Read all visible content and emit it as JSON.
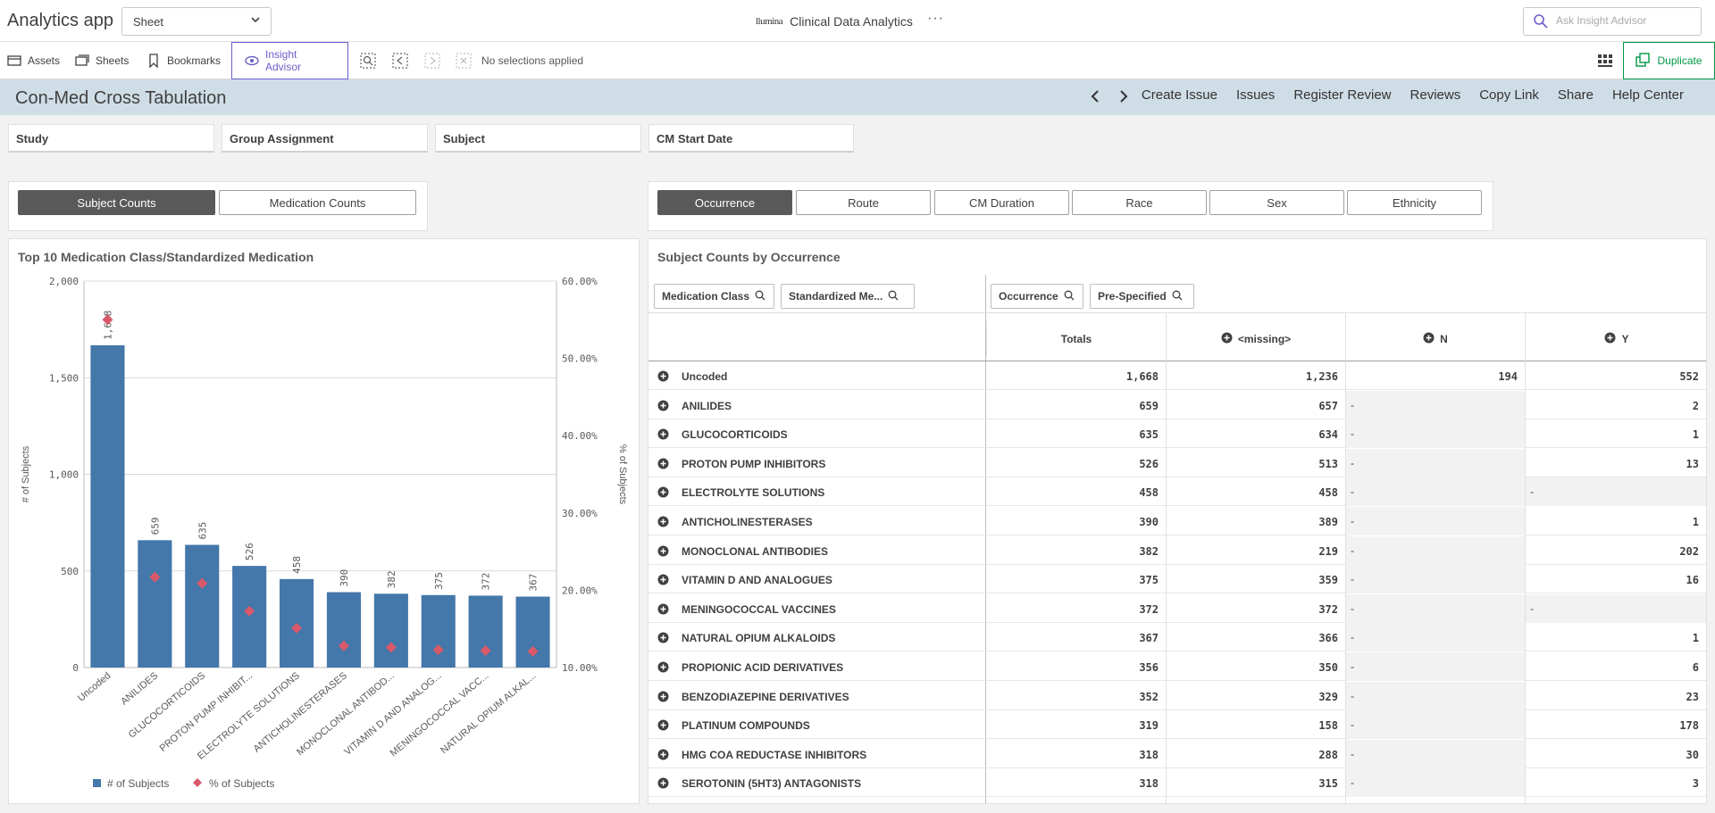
{
  "app": {
    "title": "Analytics app",
    "sheet_select": "Sheet",
    "brand_logo": "llumina",
    "brand_name": "Clinical Data Analytics",
    "more": "···",
    "ask_placeholder": "Ask Insight Advisor"
  },
  "toolbar": {
    "assets": "Assets",
    "sheets": "Sheets",
    "bookmarks": "Bookmarks",
    "insight_advisor": "Insight Advisor",
    "no_selections": "No selections applied",
    "duplicate": "Duplicate"
  },
  "sheet": {
    "title": "Con-Med Cross Tabulation",
    "prev": "‹",
    "next": "›",
    "links": [
      "Create Issue",
      "Issues",
      "Register Review",
      "Reviews",
      "Copy Link",
      "Share",
      "Help Center"
    ]
  },
  "filters": [
    "Study",
    "Group Assignment",
    "Subject",
    "CM Start Date"
  ],
  "left_buttons": [
    "Subject Counts",
    "Medication Counts"
  ],
  "right_buttons": [
    "Occurrence",
    "Route",
    "CM Duration",
    "Race",
    "Sex",
    "Ethnicity"
  ],
  "chart_data": {
    "type": "bar",
    "title": "Top 10 Medication Class/Standardized Medication",
    "categories": [
      "Uncoded",
      "ANILIDES",
      "GLUCOCORTICOIDS",
      "PROTON PUMP INHIBIT...",
      "ELECTROLYTE SOLUTIONS",
      "ANTICHOLINESTERASES",
      "MONOCLONAL ANTIBOD...",
      "VITAMIN D AND ANALOG...",
      "MENINGOCOCCAL VACC...",
      "NATURAL OPIUM ALKAL..."
    ],
    "series": [
      {
        "name": "# of Subjects",
        "values": [
          1668,
          659,
          635,
          526,
          458,
          390,
          382,
          375,
          372,
          367
        ],
        "axis": "left",
        "color": "#4477aa"
      },
      {
        "name": "% of Subjects",
        "values": [
          55.0,
          21.7,
          20.9,
          17.3,
          15.1,
          12.8,
          12.6,
          12.3,
          12.2,
          12.1
        ],
        "axis": "right",
        "color": "#d9596a",
        "marker": "diamond"
      }
    ],
    "ylabel": "# of Subjects",
    "y2label": "% of Subjects",
    "ylim": [
      0,
      2000
    ],
    "y2lim": [
      10,
      60
    ],
    "yticks": [
      "0",
      "500",
      "1,000",
      "1,500",
      "2,000"
    ],
    "y2ticks": [
      "10.00%",
      "20.00%",
      "30.00%",
      "40.00%",
      "50.00%",
      "60.00%"
    ],
    "data_labels": [
      "1,668",
      "659",
      "635",
      "526",
      "458",
      "390",
      "382",
      "375",
      "372",
      "367"
    ],
    "legend": [
      "# of Subjects",
      "% of Subjects"
    ],
    "legend_position": "bottom-left"
  },
  "table": {
    "title": "Subject Counts by Occurrence",
    "dim_filters": [
      "Medication Class",
      "Standardized Me...",
      "Occurrence",
      "Pre-Specified"
    ],
    "columns": [
      "Totals",
      "<missing>",
      "N",
      "Y"
    ],
    "rows": [
      {
        "label": "Uncoded",
        "totals": "1,668",
        "missing": "1,236",
        "n": "194",
        "y": "552"
      },
      {
        "label": "ANILIDES",
        "totals": "659",
        "missing": "657",
        "n": "-",
        "y": "2"
      },
      {
        "label": "GLUCOCORTICOIDS",
        "totals": "635",
        "missing": "634",
        "n": "-",
        "y": "1"
      },
      {
        "label": "PROTON PUMP INHIBITORS",
        "totals": "526",
        "missing": "513",
        "n": "-",
        "y": "13"
      },
      {
        "label": "ELECTROLYTE SOLUTIONS",
        "totals": "458",
        "missing": "458",
        "n": "-",
        "y": "-"
      },
      {
        "label": "ANTICHOLINESTERASES",
        "totals": "390",
        "missing": "389",
        "n": "-",
        "y": "1"
      },
      {
        "label": "MONOCLONAL ANTIBODIES",
        "totals": "382",
        "missing": "219",
        "n": "-",
        "y": "202"
      },
      {
        "label": "VITAMIN D AND ANALOGUES",
        "totals": "375",
        "missing": "359",
        "n": "-",
        "y": "16"
      },
      {
        "label": "MENINGOCOCCAL VACCINES",
        "totals": "372",
        "missing": "372",
        "n": "-",
        "y": "-"
      },
      {
        "label": "NATURAL OPIUM ALKALOIDS",
        "totals": "367",
        "missing": "366",
        "n": "-",
        "y": "1"
      },
      {
        "label": "PROPIONIC ACID DERIVATIVES",
        "totals": "356",
        "missing": "350",
        "n": "-",
        "y": "6"
      },
      {
        "label": "BENZODIAZEPINE DERIVATIVES",
        "totals": "352",
        "missing": "329",
        "n": "-",
        "y": "23"
      },
      {
        "label": "PLATINUM COMPOUNDS",
        "totals": "319",
        "missing": "158",
        "n": "-",
        "y": "178"
      },
      {
        "label": "HMG COA REDUCTASE INHIBITORS",
        "totals": "318",
        "missing": "288",
        "n": "-",
        "y": "30"
      },
      {
        "label": "SEROTONIN (5HT3) ANTAGONISTS",
        "totals": "318",
        "missing": "315",
        "n": "-",
        "y": "3"
      }
    ]
  },
  "colors": {
    "bar": "#4477aa",
    "marker": "#d9596a",
    "accent": "#6b5fca",
    "duplicate": "#009845",
    "header_band": "#cfdde6",
    "selected_button": "#595959"
  }
}
